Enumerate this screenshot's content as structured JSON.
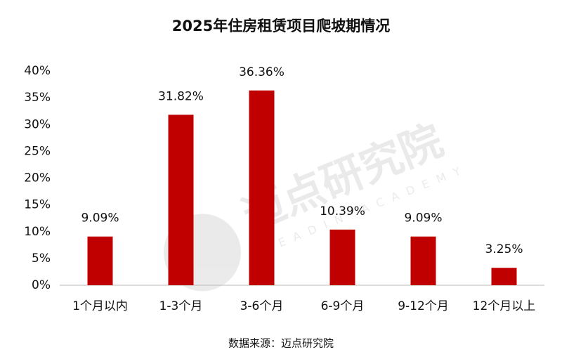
{
  "chart_data": {
    "type": "bar",
    "title": "2025年住房租赁项目爬坡期情况",
    "categories": [
      "1个月以内",
      "1-3个月",
      "3-6个月",
      "6-9个月",
      "9-12个月",
      "12个月以上"
    ],
    "values": [
      9.09,
      31.82,
      36.36,
      10.39,
      9.09,
      3.25
    ],
    "value_labels": [
      "9.09%",
      "31.82%",
      "36.36%",
      "10.39%",
      "9.09%",
      "3.25%"
    ],
    "color": "#c00000",
    "ylim": [
      0,
      40
    ],
    "yticks": [
      {
        "value": 0,
        "label": "0%"
      },
      {
        "value": 5,
        "label": "5%"
      },
      {
        "value": 10,
        "label": "10%"
      },
      {
        "value": 15,
        "label": "15%"
      },
      {
        "value": 20,
        "label": "20%"
      },
      {
        "value": 25,
        "label": "25%"
      },
      {
        "value": 30,
        "label": "30%"
      },
      {
        "value": 35,
        "label": "35%"
      },
      {
        "value": 40,
        "label": "40%"
      }
    ],
    "grid": false,
    "source": "数据来源：迈点研究院",
    "watermark": "迈点研究院",
    "watermark_subtext": "MEADIN ACADEMY"
  }
}
